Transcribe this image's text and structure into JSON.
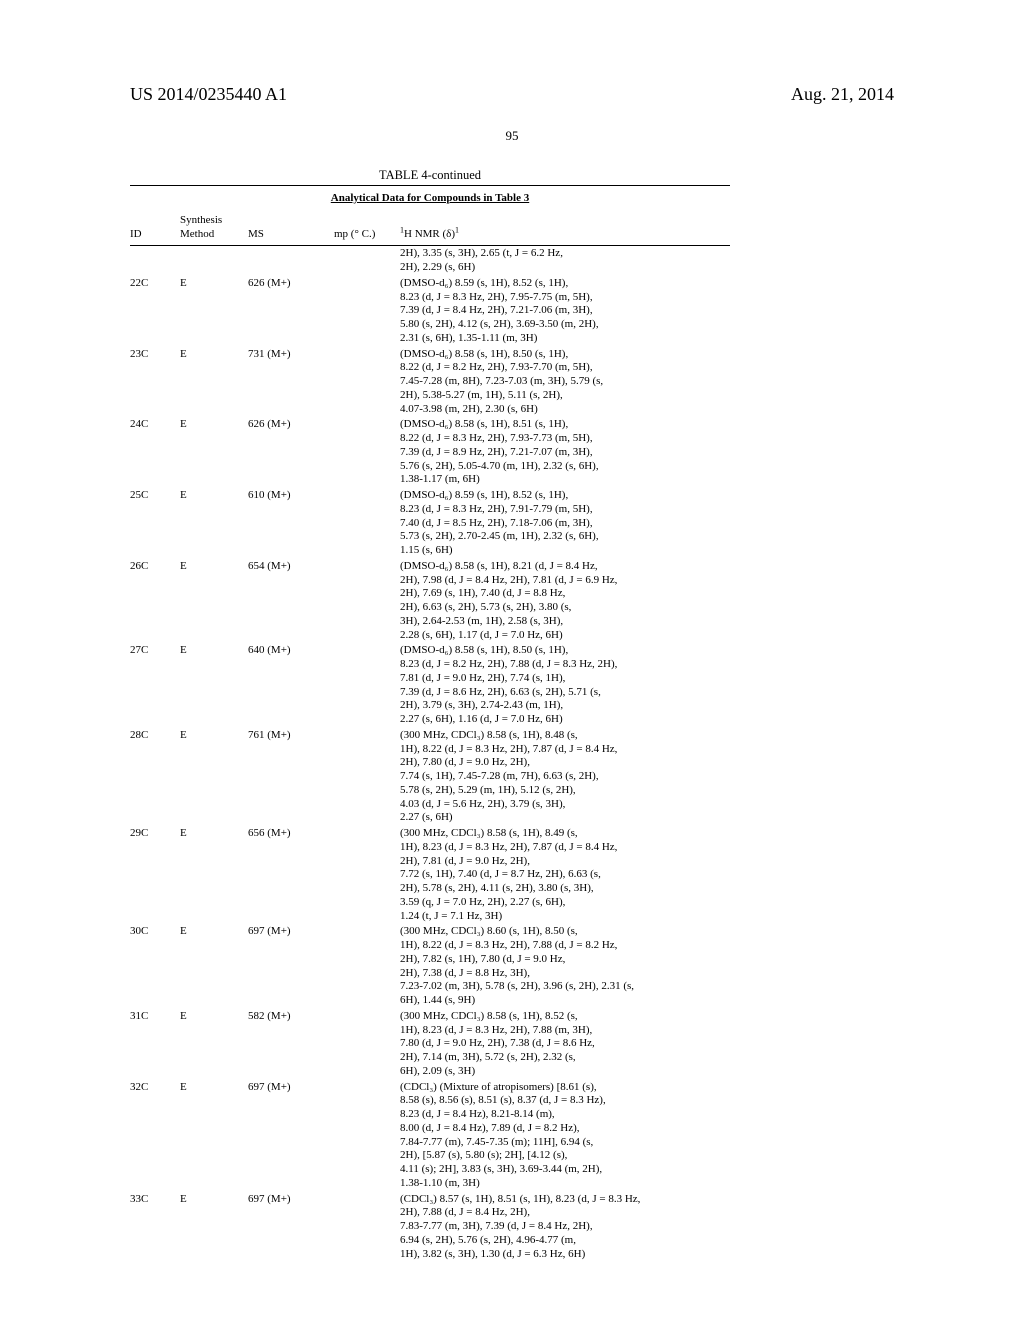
{
  "header": {
    "patent_number": "US 2014/0235440 A1",
    "date": "Aug. 21, 2014",
    "page_number": "95"
  },
  "table": {
    "title": "TABLE 4-continued",
    "subtitle": "Analytical Data for Compounds in Table 3",
    "columns": {
      "id": "ID",
      "method": "Synthesis\nMethod",
      "ms": "MS",
      "mp": "mp (° C.)",
      "nmr_prefix": "1",
      "nmr_label": "H NMR (δ)",
      "nmr_suffix": "1"
    },
    "rows": [
      {
        "id": "",
        "method": "",
        "ms": "",
        "mp": "",
        "nmr": "2H), 3.35 (s, 3H), 2.65 (t, J = 6.2 Hz,\n2H), 2.29 (s, 6H)"
      },
      {
        "id": "22C",
        "method": "E",
        "ms": "626 (M+)",
        "mp": "",
        "nmr": "(DMSO-d₆) 8.59 (s, 1H), 8.52 (s, 1H),\n8.23 (d, J = 8.3 Hz, 2H), 7.95-7.75 (m, 5H),\n7.39 (d, J = 8.4 Hz, 2H), 7.21-7.06 (m, 3H),\n5.80 (s, 2H), 4.12 (s, 2H), 3.69-3.50 (m, 2H),\n2.31 (s, 6H), 1.35-1.11 (m, 3H)"
      },
      {
        "id": "23C",
        "method": "E",
        "ms": "731 (M+)",
        "mp": "",
        "nmr": "(DMSO-d₆) 8.58 (s, 1H), 8.50 (s, 1H),\n8.22 (d, J = 8.2 Hz, 2H), 7.93-7.70 (m, 5H),\n7.45-7.28 (m, 8H), 7.23-7.03 (m, 3H), 5.79 (s,\n2H), 5.38-5.27 (m, 1H), 5.11 (s, 2H),\n4.07-3.98 (m, 2H), 2.30 (s, 6H)"
      },
      {
        "id": "24C",
        "method": "E",
        "ms": "626 (M+)",
        "mp": "",
        "nmr": "(DMSO-d₆) 8.58 (s, 1H), 8.51 (s, 1H),\n8.22 (d, J = 8.3 Hz, 2H), 7.93-7.73 (m, 5H),\n7.39 (d, J = 8.9 Hz, 2H), 7.21-7.07 (m, 3H),\n5.76 (s, 2H), 5.05-4.70 (m, 1H), 2.32 (s, 6H),\n1.38-1.17 (m, 6H)"
      },
      {
        "id": "25C",
        "method": "E",
        "ms": "610 (M+)",
        "mp": "",
        "nmr": "(DMSO-d₆) 8.59 (s, 1H), 8.52 (s, 1H),\n8.23 (d, J = 8.3 Hz, 2H), 7.91-7.79 (m, 5H),\n7.40 (d, J = 8.5 Hz, 2H), 7.18-7.06 (m, 3H),\n5.73 (s, 2H), 2.70-2.45 (m, 1H), 2.32 (s, 6H),\n1.15 (s, 6H)"
      },
      {
        "id": "26C",
        "method": "E",
        "ms": "654 (M+)",
        "mp": "",
        "nmr": "(DMSO-d₆) 8.58 (s, 1H), 8.21 (d, J = 8.4 Hz,\n2H), 7.98 (d, J = 8.4 Hz, 2H), 7.81 (d, J = 6.9 Hz,\n2H), 7.69 (s, 1H), 7.40 (d, J = 8.8 Hz,\n2H), 6.63 (s, 2H), 5.73 (s, 2H), 3.80 (s,\n3H), 2.64-2.53 (m, 1H), 2.58 (s, 3H),\n2.28 (s, 6H), 1.17 (d, J = 7.0 Hz, 6H)"
      },
      {
        "id": "27C",
        "method": "E",
        "ms": "640 (M+)",
        "mp": "",
        "nmr": "(DMSO-d₆) 8.58 (s, 1H), 8.50 (s, 1H),\n8.23 (d, J = 8.2 Hz, 2H), 7.88 (d, J = 8.3 Hz, 2H),\n7.81 (d, J = 9.0 Hz, 2H), 7.74 (s, 1H),\n7.39 (d, J = 8.6 Hz, 2H), 6.63 (s, 2H), 5.71 (s,\n2H), 3.79 (s, 3H), 2.74-2.43 (m, 1H),\n2.27 (s, 6H), 1.16 (d, J = 7.0 Hz, 6H)"
      },
      {
        "id": "28C",
        "method": "E",
        "ms": "761 (M+)",
        "mp": "",
        "nmr": "(300 MHz, CDCl₃) 8.58 (s, 1H), 8.48 (s,\n1H), 8.22 (d, J = 8.3 Hz, 2H), 7.87 (d, J = 8.4 Hz,\n2H), 7.80 (d, J = 9.0 Hz, 2H),\n7.74 (s, 1H), 7.45-7.28 (m, 7H), 6.63 (s, 2H),\n5.78 (s, 2H), 5.29 (m, 1H), 5.12 (s, 2H),\n4.03 (d, J = 5.6 Hz, 2H), 3.79 (s, 3H),\n2.27 (s, 6H)"
      },
      {
        "id": "29C",
        "method": "E",
        "ms": "656 (M+)",
        "mp": "",
        "nmr": "(300 MHz, CDCl₃) 8.58 (s, 1H), 8.49 (s,\n1H), 8.23 (d, J = 8.3 Hz, 2H), 7.87 (d, J = 8.4 Hz,\n2H), 7.81 (d, J = 9.0 Hz, 2H),\n7.72 (s, 1H), 7.40 (d, J = 8.7 Hz, 2H), 6.63 (s,\n2H), 5.78 (s, 2H), 4.11 (s, 2H), 3.80 (s, 3H),\n3.59 (q, J = 7.0 Hz, 2H), 2.27 (s, 6H),\n1.24 (t, J = 7.1 Hz, 3H)"
      },
      {
        "id": "30C",
        "method": "E",
        "ms": "697 (M+)",
        "mp": "",
        "nmr": "(300 MHz, CDCl₃) 8.60 (s, 1H), 8.50 (s,\n1H), 8.22 (d, J = 8.3 Hz, 2H), 7.88 (d, J = 8.2 Hz,\n2H), 7.82 (s, 1H), 7.80 (d, J = 9.0 Hz,\n2H), 7.38 (d, J = 8.8 Hz, 3H),\n7.23-7.02 (m, 3H), 5.78 (s, 2H), 3.96 (s, 2H), 2.31 (s,\n6H), 1.44 (s, 9H)"
      },
      {
        "id": "31C",
        "method": "E",
        "ms": "582 (M+)",
        "mp": "",
        "nmr": "(300 MHz, CDCl₃) 8.58 (s, 1H), 8.52 (s,\n1H), 8.23 (d, J = 8.3 Hz, 2H), 7.88 (m, 3H),\n7.80 (d, J = 9.0 Hz, 2H), 7.38 (d, J = 8.6 Hz,\n2H), 7.14 (m, 3H), 5.72 (s, 2H), 2.32 (s,\n6H), 2.09 (s, 3H)"
      },
      {
        "id": "32C",
        "method": "E",
        "ms": "697 (M+)",
        "mp": "",
        "nmr": "(CDCl₃) (Mixture of atropisomers) [8.61 (s),\n8.58 (s), 8.56 (s), 8.51 (s), 8.37 (d, J = 8.3 Hz),\n8.23 (d, J = 8.4 Hz), 8.21-8.14 (m),\n8.00 (d, J = 8.4 Hz), 7.89 (d, J = 8.2 Hz),\n7.84-7.77 (m), 7.45-7.35 (m); 11H], 6.94 (s,\n2H), [5.87 (s), 5.80 (s); 2H], [4.12 (s),\n4.11 (s); 2H], 3.83 (s, 3H), 3.69-3.44 (m, 2H),\n1.38-1.10 (m, 3H)"
      },
      {
        "id": "33C",
        "method": "E",
        "ms": "697 (M+)",
        "mp": "",
        "nmr": "(CDCl₃) 8.57 (s, 1H), 8.51 (s, 1H), 8.23 (d, J = 8.3 Hz,\n2H), 7.88 (d, J = 8.4 Hz, 2H),\n7.83-7.77 (m, 3H), 7.39 (d, J = 8.4 Hz, 2H),\n6.94 (s, 2H), 5.76 (s, 2H), 4.96-4.77 (m,\n1H), 3.82 (s, 3H), 1.30 (d, J = 6.3 Hz, 6H)"
      }
    ]
  }
}
